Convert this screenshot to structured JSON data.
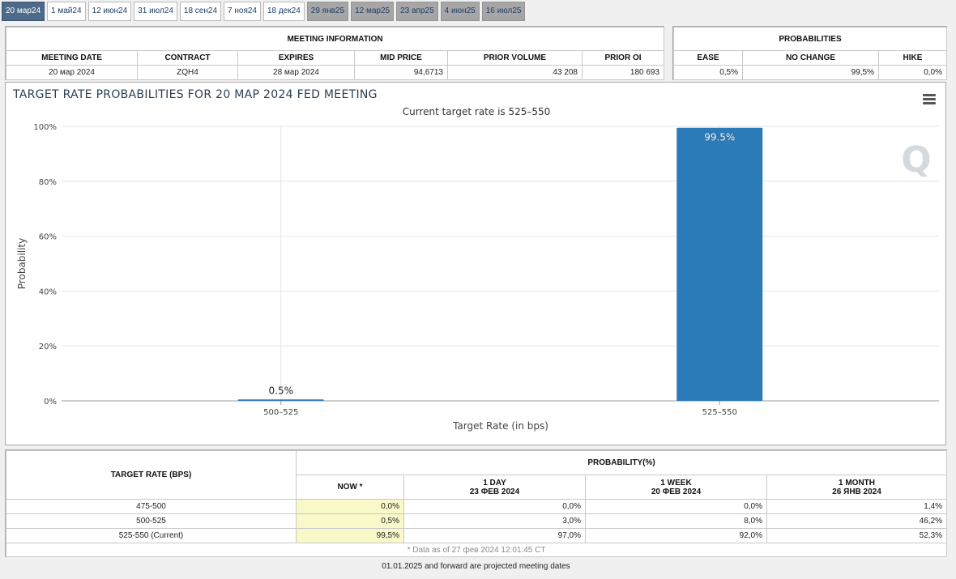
{
  "tabs": [
    {
      "label": "20 мар24",
      "state": "active"
    },
    {
      "label": "1 май24",
      "state": "normal"
    },
    {
      "label": "12 июн24",
      "state": "normal"
    },
    {
      "label": "31 июл24",
      "state": "normal"
    },
    {
      "label": "18 сен24",
      "state": "normal"
    },
    {
      "label": "7 ноя24",
      "state": "normal"
    },
    {
      "label": "18 дек24",
      "state": "normal"
    },
    {
      "label": "29 янв25",
      "state": "projected"
    },
    {
      "label": "12 мар25",
      "state": "projected"
    },
    {
      "label": "23 апр25",
      "state": "projected"
    },
    {
      "label": "4 июн25",
      "state": "projected"
    },
    {
      "label": "16 июл25",
      "state": "projected"
    }
  ],
  "meeting_info": {
    "heading": "MEETING INFORMATION",
    "headers": [
      "MEETING DATE",
      "CONTRACT",
      "EXPIRES",
      "MID PRICE",
      "PRIOR VOLUME",
      "PRIOR OI"
    ],
    "values": [
      "20 мар 2024",
      "ZQH4",
      "28 мар 2024",
      "94,6713",
      "43 208",
      "180 693"
    ]
  },
  "probabilities": {
    "heading": "PROBABILITIES",
    "headers": [
      "EASE",
      "NO CHANGE",
      "HIKE"
    ],
    "values": [
      "0,5%",
      "99,5%",
      "0,0%"
    ]
  },
  "chart_data": {
    "type": "bar",
    "title": "TARGET RATE PROBABILITIES FOR 20 МАР 2024 FED MEETING",
    "subtitle": "Current target rate is 525–550",
    "categories": [
      "500–525",
      "525–550"
    ],
    "values": [
      0.5,
      99.5
    ],
    "data_labels": [
      "0.5%",
      "99.5%"
    ],
    "xlabel": "Target Rate (in bps)",
    "ylabel": "Probability",
    "ylim": [
      0,
      100
    ],
    "yticks": [
      0,
      20,
      40,
      60,
      80,
      100
    ],
    "ytick_labels": [
      "0%",
      "20%",
      "40%",
      "60%",
      "80%",
      "100%"
    ],
    "grid": true,
    "bar_color": "#2b7bb9",
    "watermark": "Q"
  },
  "bottom_table": {
    "target_header": "TARGET RATE (BPS)",
    "prob_header": "PROBABILITY(%)",
    "columns": [
      {
        "line1": "NOW *",
        "line2": ""
      },
      {
        "line1": "1 DAY",
        "line2": "23 ФЕВ 2024"
      },
      {
        "line1": "1 WEEK",
        "line2": "20 ФЕВ 2024"
      },
      {
        "line1": "1 MONTH",
        "line2": "26 ЯНВ 2024"
      }
    ],
    "rows": [
      {
        "rate": "475-500",
        "values": [
          "0,0%",
          "0,0%",
          "0,0%",
          "1,4%"
        ]
      },
      {
        "rate": "500-525",
        "values": [
          "0,5%",
          "3,0%",
          "8,0%",
          "46,2%"
        ]
      },
      {
        "rate": "525-550 (Current)",
        "values": [
          "99,5%",
          "97,0%",
          "92,0%",
          "52,3%"
        ]
      }
    ],
    "data_as_of": "* Data as of 27 фев 2024 12:01:45 CT"
  },
  "footnote": "01.01.2025 and forward are projected meeting dates",
  "colors": {
    "active_tab": "#4d6a8a",
    "projected_tab": "#a6a6a6",
    "now_highlight": "#f8f8c8"
  }
}
